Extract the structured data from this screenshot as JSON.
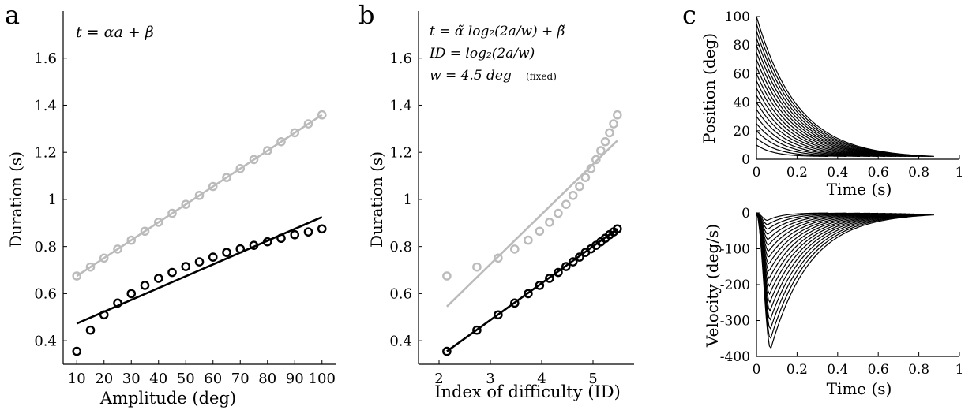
{
  "chart_data": [
    {
      "type": "scatter",
      "panel_letter": "a",
      "formula": [
        "t = αa + β"
      ],
      "xlabel": "Amplitude (deg)",
      "ylabel": "Duration (s)",
      "xlim": [
        5,
        105
      ],
      "ylim": [
        0.3,
        1.8
      ],
      "xticks": [
        10,
        20,
        30,
        40,
        50,
        60,
        70,
        80,
        90,
        100
      ],
      "yticks": [
        0.4,
        0.6,
        0.8,
        1,
        1.2,
        1.4,
        1.6
      ],
      "ytick_labels": [
        "0.4",
        "0.6",
        "0.8",
        "1",
        "1.2",
        "1.4",
        "1.6"
      ],
      "colors": {
        "gray": "#bbbbbb",
        "black": "#000000"
      },
      "series": [
        {
          "color": "gray",
          "points": {
            "x": [
              10,
              15,
              20,
              25,
              30,
              35,
              40,
              45,
              50,
              55,
              60,
              65,
              70,
              75,
              80,
              85,
              90,
              95,
              100
            ],
            "y": [
              0.675,
              0.713,
              0.751,
              0.789,
              0.827,
              0.865,
              0.903,
              0.941,
              0.979,
              1.017,
              1.055,
              1.093,
              1.131,
              1.169,
              1.207,
              1.245,
              1.283,
              1.321,
              1.359
            ]
          },
          "fit": {
            "x": [
              10,
              100
            ],
            "y": [
              0.675,
              1.359
            ]
          }
        },
        {
          "color": "black",
          "points": {
            "x": [
              10,
              15,
              20,
              25,
              30,
              35,
              40,
              45,
              50,
              55,
              60,
              65,
              70,
              75,
              80,
              85,
              90,
              95,
              100
            ],
            "y": [
              0.355,
              0.445,
              0.51,
              0.56,
              0.6,
              0.635,
              0.665,
              0.69,
              0.715,
              0.735,
              0.755,
              0.775,
              0.79,
              0.805,
              0.82,
              0.835,
              0.85,
              0.862,
              0.875
            ]
          },
          "fit": {
            "x": [
              10,
              100
            ],
            "y": [
              0.473,
              0.925
            ]
          }
        }
      ]
    },
    {
      "type": "scatter",
      "panel_letter": "b",
      "formula": [
        "t = α̃ log₂(2a/w) + β̃",
        "ID = log₂(2a/w)",
        "w = 4.5 deg"
      ],
      "formula_note": "(fixed)",
      "xlabel": "Index of difficulty (ID)",
      "ylabel": "Duration (s)",
      "xlim": [
        1.6,
        5.8
      ],
      "ylim": [
        0.3,
        1.8
      ],
      "xticks": [
        2,
        3,
        4,
        5
      ],
      "yticks": [
        0.4,
        0.6,
        0.8,
        1,
        1.2,
        1.4,
        1.6
      ],
      "ytick_labels": [
        "0.4",
        "0.6",
        "0.8",
        "1",
        "1.2",
        "1.4",
        "1.6"
      ],
      "colors": {
        "gray": "#bbbbbb",
        "black": "#000000"
      },
      "series": [
        {
          "color": "gray",
          "points": {
            "x": [
              2.152,
              2.737,
              3.152,
              3.474,
              3.737,
              3.959,
              4.152,
              4.322,
              4.474,
              4.611,
              4.737,
              4.852,
              4.959,
              5.059,
              5.152,
              5.239,
              5.322,
              5.4,
              5.474
            ],
            "y": [
              0.675,
              0.713,
              0.751,
              0.789,
              0.827,
              0.865,
              0.903,
              0.941,
              0.979,
              1.017,
              1.055,
              1.093,
              1.131,
              1.169,
              1.207,
              1.245,
              1.283,
              1.321,
              1.359
            ]
          },
          "fit": {
            "x": [
              2.152,
              5.474
            ],
            "y": [
              0.545,
              1.25
            ]
          }
        },
        {
          "color": "black",
          "points": {
            "x": [
              2.152,
              2.737,
              3.152,
              3.474,
              3.737,
              3.959,
              4.152,
              4.322,
              4.474,
              4.611,
              4.737,
              4.852,
              4.959,
              5.059,
              5.152,
              5.239,
              5.322,
              5.4,
              5.474
            ],
            "y": [
              0.355,
              0.445,
              0.51,
              0.56,
              0.6,
              0.635,
              0.665,
              0.69,
              0.715,
              0.735,
              0.755,
              0.775,
              0.79,
              0.805,
              0.82,
              0.835,
              0.85,
              0.862,
              0.875
            ]
          },
          "fit": {
            "x": [
              2.152,
              5.474
            ],
            "y": [
              0.355,
              0.875
            ]
          }
        }
      ]
    },
    {
      "type": "line",
      "panel_letter": "c",
      "xlabel": "Time (s)",
      "ylabel": "Position (deg)",
      "xlim": [
        0,
        1
      ],
      "ylim": [
        0,
        100
      ],
      "xticks": [
        0,
        0.2,
        0.4,
        0.6,
        0.8,
        1
      ],
      "xtick_labels": [
        "0",
        "0.2",
        "0.4",
        "0.6",
        "0.8",
        "1"
      ],
      "yticks": [
        0,
        20,
        40,
        60,
        80,
        100
      ],
      "colors": {
        "line": "#000000"
      },
      "curve_family": {
        "amplitudes": [
          10,
          15,
          20,
          25,
          30,
          35,
          40,
          45,
          50,
          55,
          60,
          65,
          70,
          75,
          80,
          85,
          90,
          95,
          100
        ],
        "durations": [
          0.355,
          0.445,
          0.51,
          0.56,
          0.6,
          0.635,
          0.665,
          0.69,
          0.715,
          0.735,
          0.755,
          0.775,
          0.79,
          0.805,
          0.82,
          0.835,
          0.85,
          0.862,
          0.875
        ],
        "end_value": 2,
        "profile": "exponential decay toward end_value with rounded onset"
      }
    },
    {
      "type": "line",
      "panel_letter": "",
      "xlabel": "Time (s)",
      "ylabel": "Velocity (deg/s)",
      "xlim": [
        0,
        1
      ],
      "ylim": [
        -400,
        0
      ],
      "xticks": [
        0,
        0.2,
        0.4,
        0.6,
        0.8,
        1
      ],
      "xtick_labels": [
        "0",
        "0.2",
        "0.4",
        "0.6",
        "0.8",
        "1"
      ],
      "yticks": [
        -400,
        -300,
        -200,
        -100,
        0
      ],
      "colors": {
        "line": "#000000"
      },
      "curve_family": {
        "amplitudes": [
          10,
          15,
          20,
          25,
          30,
          35,
          40,
          45,
          50,
          55,
          60,
          65,
          70,
          75,
          80,
          85,
          90,
          95,
          100
        ],
        "durations": [
          0.355,
          0.445,
          0.51,
          0.56,
          0.6,
          0.635,
          0.665,
          0.69,
          0.715,
          0.735,
          0.755,
          0.775,
          0.79,
          0.805,
          0.82,
          0.835,
          0.85,
          0.862,
          0.875
        ],
        "peak_time": 0.07,
        "peak_velocity_min": -380,
        "profile": "derivative of position curves"
      }
    }
  ]
}
